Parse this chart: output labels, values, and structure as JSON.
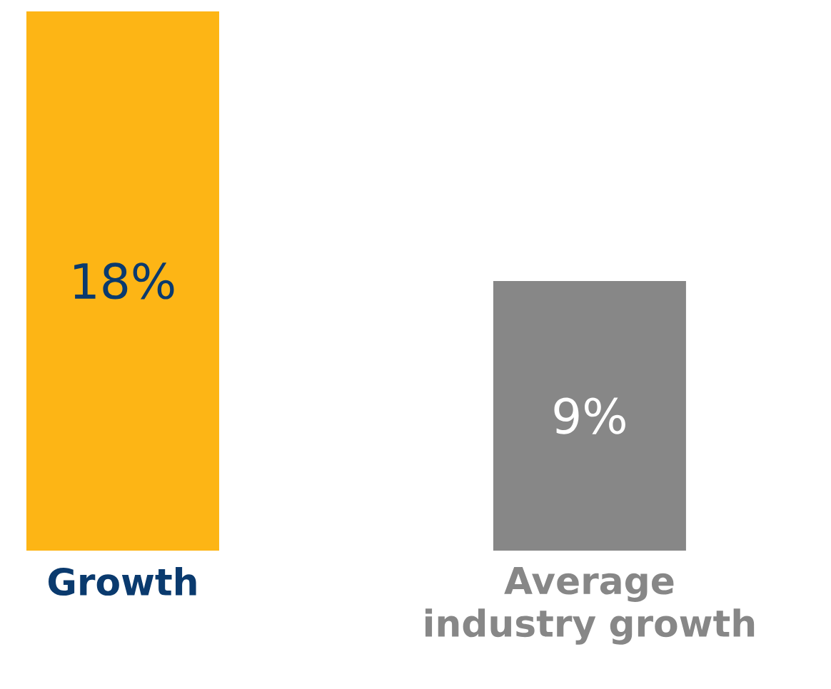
{
  "chart_data": {
    "type": "bar",
    "categories": [
      "Growth",
      "Average industry growth"
    ],
    "values": [
      18,
      9
    ],
    "colors": [
      "#fdb515",
      "#878787"
    ],
    "value_labels": [
      "18%",
      "9%"
    ]
  }
}
